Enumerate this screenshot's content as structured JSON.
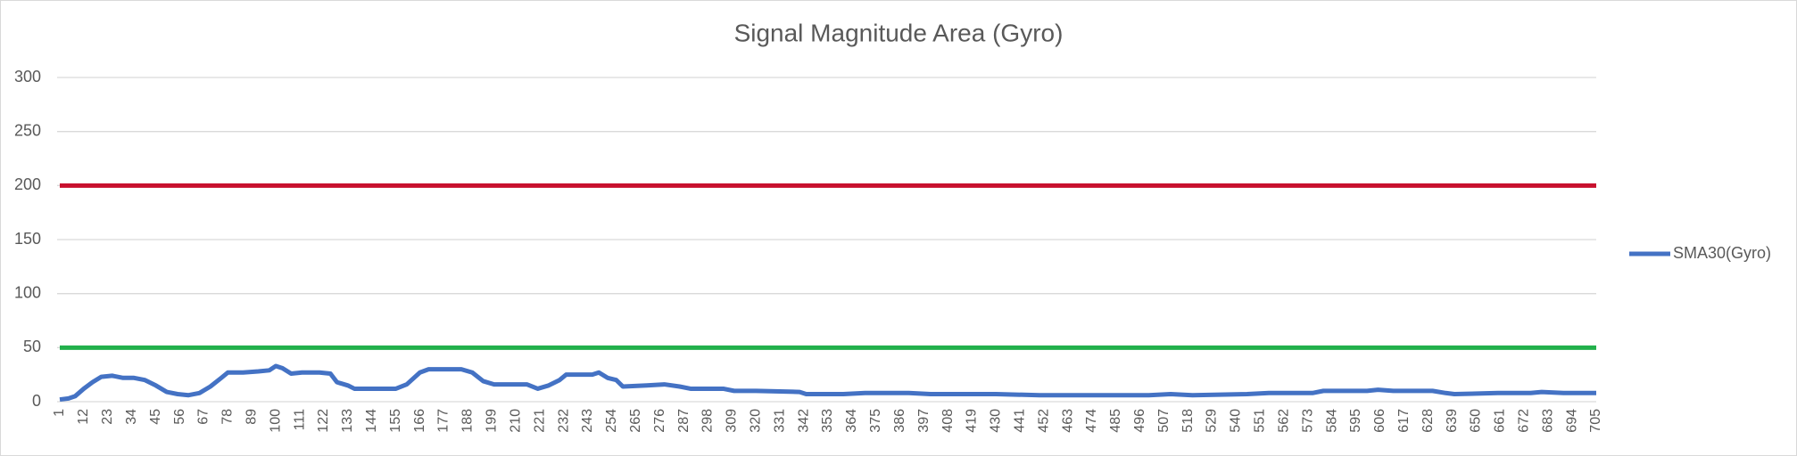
{
  "chart_data": {
    "type": "line",
    "title": "Signal Magnitude Area (Gyro)",
    "x": [
      1,
      5,
      8,
      12,
      16,
      20,
      25,
      30,
      35,
      40,
      45,
      50,
      55,
      60,
      65,
      70,
      75,
      78,
      85,
      92,
      97,
      100,
      103,
      107,
      112,
      120,
      125,
      128,
      133,
      136,
      150,
      155,
      160,
      166,
      170,
      185,
      190,
      195,
      200,
      215,
      220,
      225,
      230,
      233,
      245,
      248,
      252,
      256,
      259,
      270,
      278,
      285,
      290,
      305,
      310,
      320,
      340,
      343,
      360,
      370,
      390,
      400,
      430,
      450,
      470,
      500,
      510,
      520,
      545,
      555,
      575,
      580,
      600,
      605,
      612,
      630,
      636,
      640,
      660,
      675,
      680,
      690,
      705
    ],
    "series": [
      {
        "name": "SMA30(Gyro)",
        "color": "#4472c4",
        "values": [
          2,
          3,
          5,
          12,
          18,
          23,
          24,
          22,
          22,
          20,
          15,
          9,
          7,
          6,
          8,
          14,
          22,
          27,
          27,
          28,
          29,
          33,
          31,
          26,
          27,
          27,
          26,
          18,
          15,
          12,
          12,
          12,
          16,
          27,
          30,
          30,
          27,
          19,
          16,
          16,
          12,
          15,
          20,
          25,
          25,
          27,
          22,
          20,
          14,
          15,
          16,
          14,
          12,
          12,
          10,
          10,
          9,
          7,
          7,
          8,
          8,
          7,
          7,
          6,
          6,
          6,
          7,
          6,
          7,
          8,
          8,
          10,
          10,
          11,
          10,
          10,
          8,
          7,
          8,
          8,
          9,
          8,
          8
        ]
      }
    ],
    "reference_lines": [
      {
        "value": 200,
        "color": "#c8102e"
      },
      {
        "value": 50,
        "color": "#22b04b"
      }
    ],
    "xlim": [
      1,
      705
    ],
    "xticks": [
      1,
      12,
      23,
      34,
      45,
      56,
      67,
      78,
      89,
      100,
      111,
      122,
      133,
      144,
      155,
      166,
      177,
      188,
      199,
      210,
      221,
      232,
      243,
      254,
      265,
      276,
      287,
      298,
      309,
      320,
      331,
      342,
      353,
      364,
      375,
      386,
      397,
      408,
      419,
      430,
      441,
      452,
      463,
      474,
      485,
      496,
      507,
      518,
      529,
      540,
      551,
      562,
      573,
      584,
      595,
      606,
      617,
      628,
      639,
      650,
      661,
      672,
      683,
      694,
      705
    ],
    "ylim": [
      0,
      300
    ],
    "yticks": [
      0,
      50,
      100,
      150,
      200,
      250,
      300
    ],
    "grid": true,
    "legend": "right"
  }
}
